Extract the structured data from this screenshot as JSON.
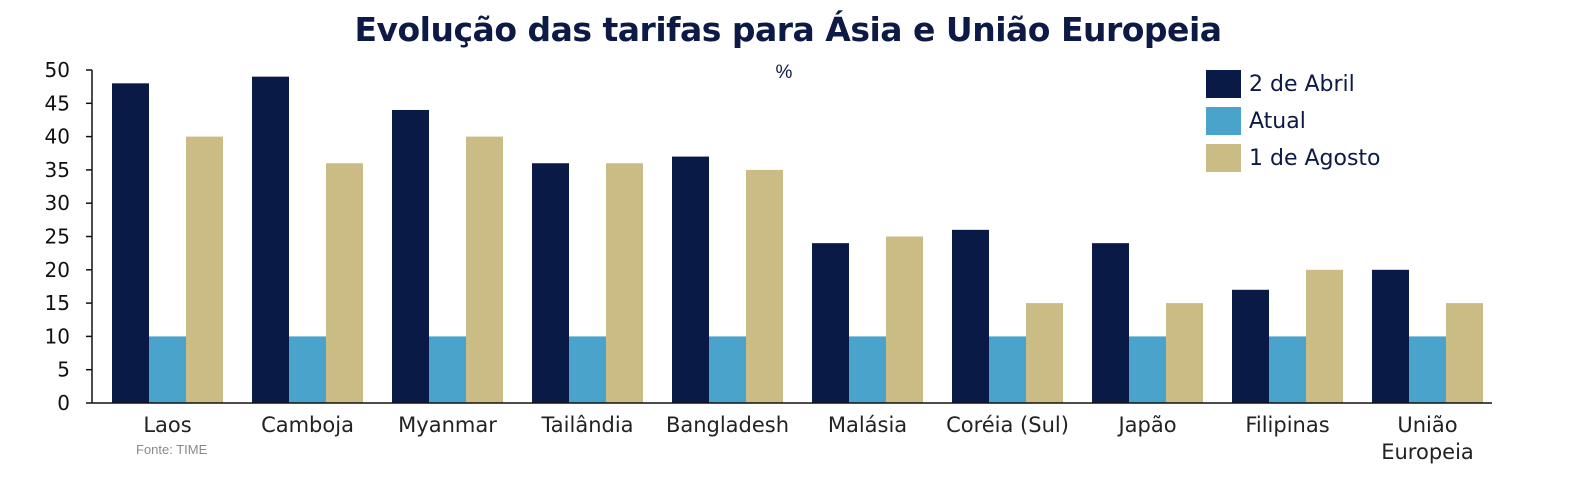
{
  "chart_data": {
    "type": "bar",
    "title": "Evolução das tarifas para Ásia e União Europeia",
    "unit": "%",
    "source": "Fonte: TIME",
    "categories": [
      [
        "Laos"
      ],
      [
        "Camboja"
      ],
      [
        "Myanmar"
      ],
      [
        "Tailândia"
      ],
      [
        "Bangladesh"
      ],
      [
        "Malásia"
      ],
      [
        "Coréia (Sul)"
      ],
      [
        "Japão"
      ],
      [
        "Filipinas"
      ],
      [
        "União",
        "Europeia"
      ]
    ],
    "series": [
      {
        "name": "2 de Abril",
        "color": "#0a1a47",
        "values": [
          48,
          49,
          44,
          36,
          37,
          24,
          26,
          24,
          17,
          20
        ]
      },
      {
        "name": "Atual",
        "color": "#4aa3cb",
        "values": [
          10,
          10,
          10,
          10,
          10,
          10,
          10,
          10,
          10,
          10
        ]
      },
      {
        "name": "1 de Agosto",
        "color": "#cbbb85",
        "values": [
          40,
          36,
          40,
          36,
          35,
          25,
          15,
          15,
          20,
          15
        ]
      }
    ],
    "ylim": [
      0,
      50
    ],
    "yticks": [
      0,
      5,
      10,
      15,
      20,
      25,
      30,
      35,
      40,
      45,
      50
    ],
    "grid": false,
    "legend": "top-right"
  }
}
